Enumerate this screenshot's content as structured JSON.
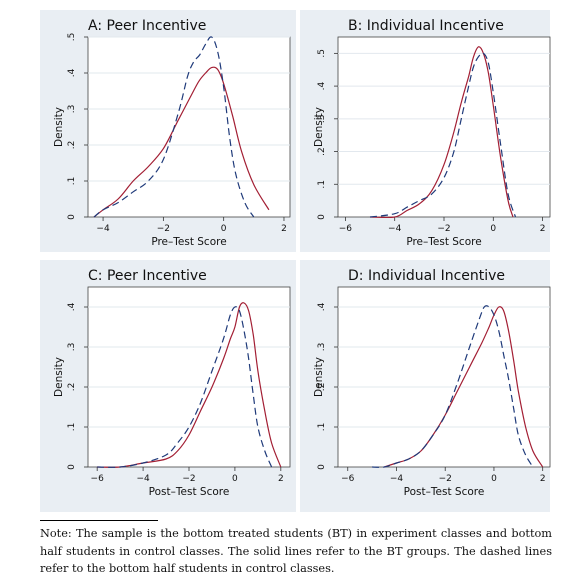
{
  "chart_data": [
    {
      "type": "line",
      "title": "A: Peer Incentive",
      "xlabel": "Pre–Test Score",
      "ylabel": "Density",
      "xlim": [
        -4.5,
        2.2
      ],
      "ylim": [
        0,
        0.5
      ],
      "xticks": [
        -4,
        -2,
        0,
        2
      ],
      "xtick_labels": [
        "−4",
        "−2",
        "0",
        "2"
      ],
      "yticks": [
        0,
        0.1,
        0.2,
        0.3,
        0.4,
        0.5
      ],
      "ytick_labels": [
        "0",
        ".1",
        ".2",
        ".3",
        ".4",
        ".5"
      ],
      "grid": "horizontal",
      "series": [
        {
          "style": "solid",
          "color": "#a31f34",
          "x": [
            -4.3,
            -4.0,
            -3.5,
            -3.0,
            -2.5,
            -2.0,
            -1.5,
            -1.0,
            -0.8,
            -0.6,
            -0.4,
            -0.2,
            0.0,
            0.3,
            0.6,
            1.0,
            1.5
          ],
          "y": [
            0.0,
            0.02,
            0.05,
            0.1,
            0.14,
            0.19,
            0.27,
            0.35,
            0.38,
            0.4,
            0.415,
            0.41,
            0.37,
            0.28,
            0.18,
            0.09,
            0.02
          ]
        },
        {
          "style": "dashed",
          "color": "#1f3a7a",
          "x": [
            -4.3,
            -4.0,
            -3.5,
            -3.0,
            -2.5,
            -2.0,
            -1.5,
            -1.2,
            -1.0,
            -0.8,
            -0.6,
            -0.4,
            -0.2,
            0.0,
            0.2,
            0.4,
            0.7,
            1.0
          ],
          "y": [
            0.0,
            0.02,
            0.04,
            0.07,
            0.1,
            0.16,
            0.29,
            0.39,
            0.43,
            0.45,
            0.48,
            0.5,
            0.46,
            0.36,
            0.22,
            0.12,
            0.04,
            0.0
          ]
        }
      ]
    },
    {
      "type": "line",
      "title": "B: Individual Incentive",
      "xlabel": "Pre–Test Score",
      "ylabel": "Density",
      "xlim": [
        -6.3,
        2.3
      ],
      "ylim": [
        0,
        0.55
      ],
      "xticks": [
        -6,
        -4,
        -2,
        0,
        2
      ],
      "xtick_labels": [
        "−6",
        "−4",
        "−2",
        "0",
        "2"
      ],
      "yticks": [
        0,
        0.1,
        0.2,
        0.3,
        0.4,
        0.5
      ],
      "ytick_labels": [
        "0",
        ".1",
        ".2",
        ".3",
        ".4",
        ".5"
      ],
      "grid": "horizontal",
      "series": [
        {
          "style": "solid",
          "color": "#a31f34",
          "x": [
            -5.0,
            -4.0,
            -3.5,
            -3.0,
            -2.5,
            -2.0,
            -1.6,
            -1.3,
            -1.0,
            -0.8,
            -0.6,
            -0.4,
            -0.2,
            0.0,
            0.3,
            0.6,
            0.8
          ],
          "y": [
            0.0,
            0.0,
            0.02,
            0.04,
            0.08,
            0.16,
            0.26,
            0.35,
            0.43,
            0.49,
            0.52,
            0.5,
            0.44,
            0.34,
            0.18,
            0.05,
            0.0
          ]
        },
        {
          "style": "dashed",
          "color": "#1f3a7a",
          "x": [
            -5.0,
            -4.0,
            -3.5,
            -3.0,
            -2.5,
            -2.0,
            -1.6,
            -1.3,
            -1.0,
            -0.8,
            -0.6,
            -0.4,
            -0.2,
            0.0,
            0.3,
            0.6,
            0.9
          ],
          "y": [
            0.0,
            0.01,
            0.03,
            0.05,
            0.07,
            0.12,
            0.2,
            0.3,
            0.4,
            0.46,
            0.49,
            0.5,
            0.47,
            0.38,
            0.22,
            0.07,
            0.0
          ]
        }
      ]
    },
    {
      "type": "line",
      "title": "C: Peer Incentive",
      "xlabel": "Post–Test Score",
      "ylabel": "Density",
      "xlim": [
        -6.4,
        2.4
      ],
      "ylim": [
        0,
        0.45
      ],
      "xticks": [
        -6,
        -4,
        -2,
        0,
        2
      ],
      "xtick_labels": [
        "−6",
        "−4",
        "−2",
        "0",
        "2"
      ],
      "yticks": [
        0,
        0.1,
        0.2,
        0.3,
        0.4
      ],
      "ytick_labels": [
        "0",
        ".1",
        ".2",
        ".3",
        ".4"
      ],
      "grid": "horizontal",
      "series": [
        {
          "style": "solid",
          "color": "#a31f34",
          "x": [
            -6.0,
            -5.0,
            -4.0,
            -3.0,
            -2.5,
            -2.0,
            -1.5,
            -1.0,
            -0.5,
            -0.2,
            0.0,
            0.2,
            0.4,
            0.6,
            0.8,
            1.0,
            1.3,
            1.6,
            2.0
          ],
          "y": [
            0.0,
            0.0,
            0.01,
            0.02,
            0.04,
            0.08,
            0.14,
            0.2,
            0.27,
            0.32,
            0.35,
            0.4,
            0.41,
            0.39,
            0.33,
            0.24,
            0.14,
            0.06,
            0.0
          ]
        },
        {
          "style": "dashed",
          "color": "#1f3a7a",
          "x": [
            -6.0,
            -5.0,
            -4.0,
            -3.0,
            -2.5,
            -2.0,
            -1.5,
            -1.0,
            -0.5,
            -0.2,
            0.0,
            0.2,
            0.4,
            0.6,
            0.8,
            1.0,
            1.3,
            1.6
          ],
          "y": [
            0.0,
            0.0,
            0.01,
            0.03,
            0.06,
            0.1,
            0.16,
            0.24,
            0.32,
            0.38,
            0.4,
            0.39,
            0.34,
            0.27,
            0.18,
            0.1,
            0.04,
            0.0
          ]
        }
      ]
    },
    {
      "type": "line",
      "title": "D: Individual Incentive",
      "xlabel": "Post–Test Score",
      "ylabel": "Density",
      "xlim": [
        -6.4,
        2.3
      ],
      "ylim": [
        0,
        0.45
      ],
      "xticks": [
        -6,
        -4,
        -2,
        0,
        2
      ],
      "xtick_labels": [
        "−6",
        "−4",
        "−2",
        "0",
        "2"
      ],
      "yticks": [
        0,
        0.1,
        0.2,
        0.3,
        0.4
      ],
      "ytick_labels": [
        "0",
        ".1",
        ".2",
        ".3",
        ".4"
      ],
      "grid": "horizontal",
      "series": [
        {
          "style": "solid",
          "color": "#a31f34",
          "x": [
            -4.5,
            -4.0,
            -3.5,
            -3.0,
            -2.5,
            -2.0,
            -1.5,
            -1.0,
            -0.5,
            -0.2,
            0.0,
            0.2,
            0.4,
            0.6,
            0.8,
            1.0,
            1.3,
            1.6,
            2.0
          ],
          "y": [
            0.0,
            0.01,
            0.02,
            0.04,
            0.08,
            0.13,
            0.19,
            0.25,
            0.31,
            0.35,
            0.38,
            0.4,
            0.39,
            0.34,
            0.27,
            0.19,
            0.1,
            0.04,
            0.0
          ]
        },
        {
          "style": "dashed",
          "color": "#1f3a7a",
          "x": [
            -5.0,
            -4.5,
            -4.0,
            -3.5,
            -3.0,
            -2.5,
            -2.0,
            -1.5,
            -1.0,
            -0.6,
            -0.4,
            -0.2,
            0.0,
            0.2,
            0.4,
            0.6,
            0.8,
            1.0,
            1.3,
            1.6
          ],
          "y": [
            0.0,
            0.0,
            0.01,
            0.02,
            0.04,
            0.08,
            0.13,
            0.21,
            0.3,
            0.37,
            0.4,
            0.4,
            0.38,
            0.34,
            0.28,
            0.22,
            0.15,
            0.08,
            0.03,
            0.0
          ]
        }
      ]
    }
  ],
  "note": "Note: The sample is the bottom treated students (BT) in experiment classes and bottom half students in control classes. The solid lines refer to the BT groups. The dashed lines refer to the bottom half students in control classes.",
  "colors": {
    "panel_bg": "#e9eef3",
    "plot_bg": "#ffffff",
    "treated": "#a31f34",
    "control": "#1f3a7a",
    "grid": "#e2e8ee"
  }
}
